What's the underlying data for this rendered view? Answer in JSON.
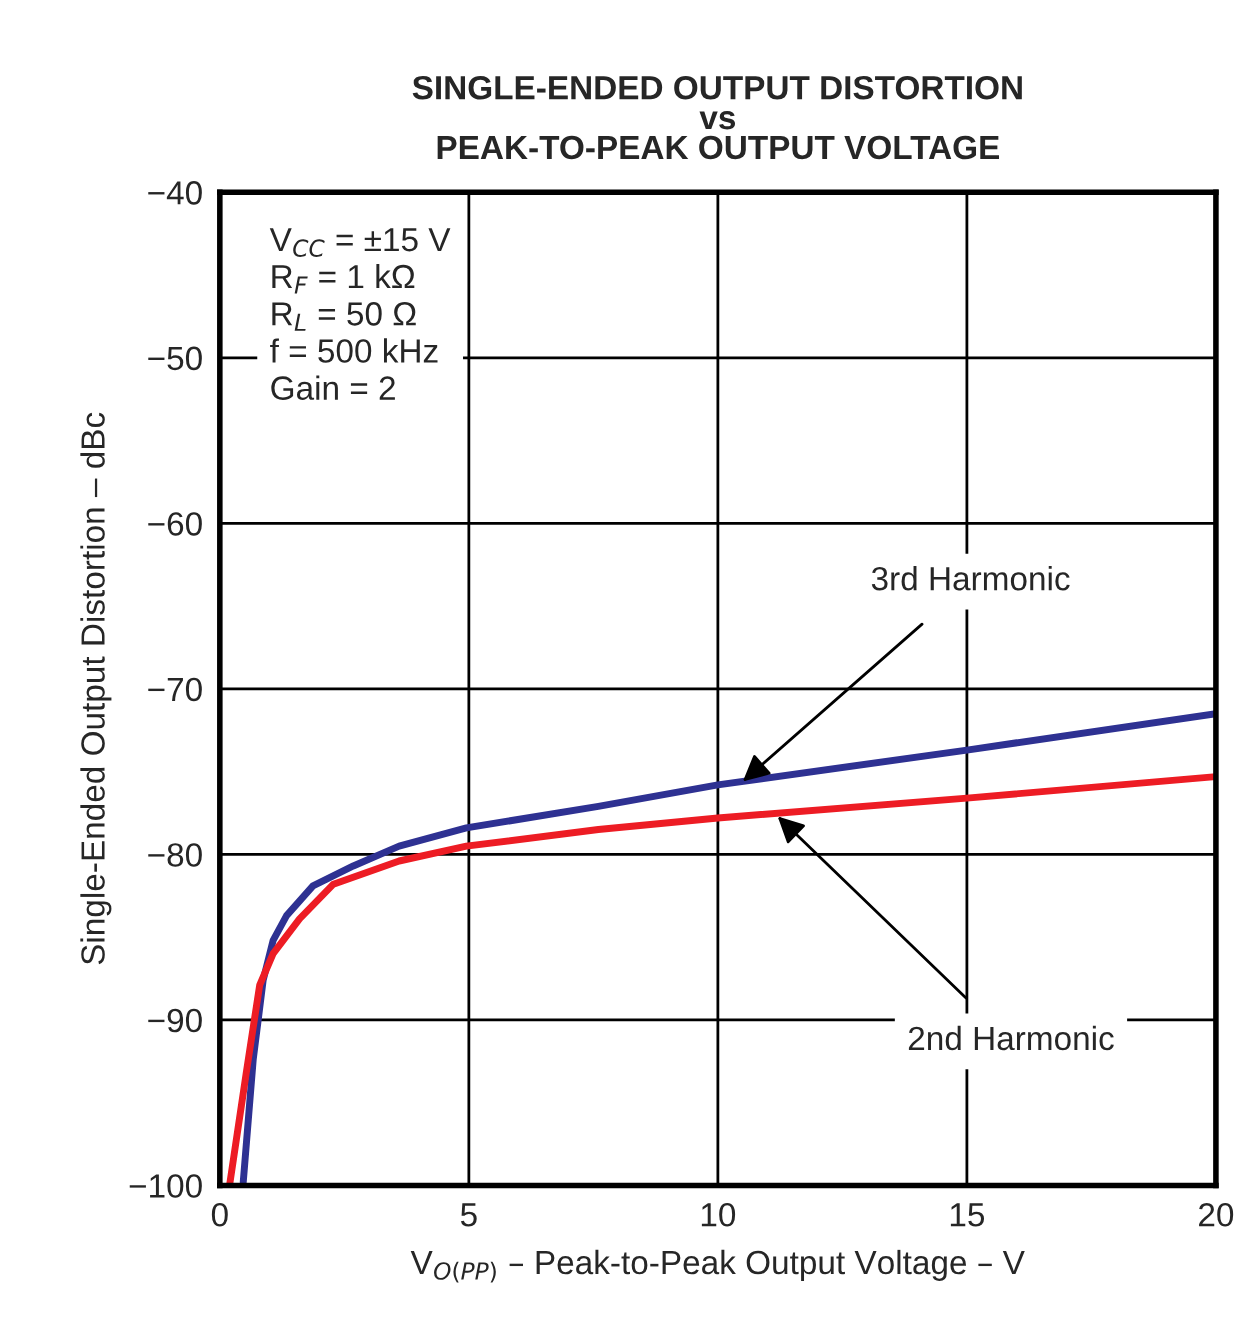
{
  "chart_data": {
    "type": "line",
    "title": "SINGLE-ENDED OUTPUT DISTORTION\nvs\nPEAK-TO-PEAK OUTPUT VOLTAGE",
    "xlabel": "V$_{O(PP)}$ – Peak-to-Peak Output Voltage – V",
    "ylabel": "Single-Ended Output Distortion – dBc",
    "series": [
      {
        "color": "#2e3192",
        "x": [
          0.47,
          0.67,
          0.87,
          1.07,
          1.34,
          1.87,
          2.68,
          3.6,
          4.95,
          7.6,
          10,
          15,
          20
        ],
        "values": [
          -99.8,
          -92.4,
          -87.6,
          -85.2,
          -83.7,
          -81.9,
          -80.7,
          -79.5,
          -78.4,
          -77.1,
          -75.8,
          -73.7,
          -71.5
        ]
      },
      {
        "color": "#ed1c24",
        "x": [
          0.2,
          0.53,
          0.8,
          1.07,
          1.6,
          2.28,
          3.6,
          4.95,
          7.6,
          10,
          15,
          20
        ],
        "values": [
          -99.9,
          -93.2,
          -87.9,
          -86,
          -83.9,
          -81.8,
          -80.4,
          -79.5,
          -78.5,
          -77.8,
          -76.6,
          -75.3
        ]
      }
    ],
    "annotations": [
      "V$_{CC}$ = ±15 V\nR$_{F}$ = 1 kΩ\nR$_{L}$ = 50 Ω\nf = 500 kHz\nGain = 2",
      {
        "text": "3rd Harmonic",
        "x": 10.5,
        "y": -75.6
      },
      {
        "text": "2nd Harmonic",
        "x": 11.2,
        "y": -77.7
      }
    ],
    "xlim": [
      0,
      20
    ],
    "xticks": [
      0,
      5,
      10,
      15,
      20
    ],
    "ylim": [
      -100,
      -40
    ],
    "yticks": [
      {
        "value": -100,
        "label": "−100"
      },
      {
        "value": -90,
        "label": "−90"
      },
      {
        "value": -80,
        "label": "−80"
      },
      {
        "value": -70,
        "label": "−70"
      },
      {
        "value": -60,
        "label": "−60"
      },
      {
        "value": -50,
        "label": "−50"
      },
      {
        "value": -40,
        "label": "−40"
      }
    ],
    "grid": true,
    "legend": false,
    "marker": "none",
    "line_style": "solid"
  }
}
